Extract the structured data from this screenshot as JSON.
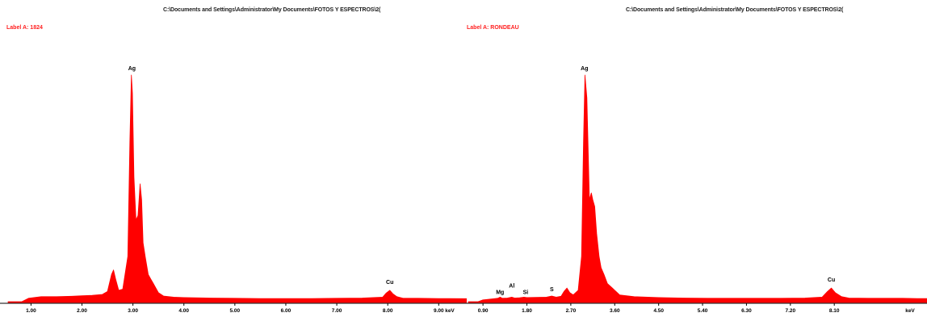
{
  "chart_data": [
    {
      "type": "area",
      "title": "C:\\Documents and Settings\\Administrator\\My Documents\\FOTOS Y ESPECTROS\\2(",
      "label": "Label A: 1824",
      "xlabel": "keV",
      "ylabel": "",
      "xlim": [
        0.55,
        9.55
      ],
      "ylim": [
        0,
        100
      ],
      "x_ticks": [
        "1.00",
        "2.00",
        "3.00",
        "4.00",
        "5.00",
        "6.00",
        "7.00",
        "8.00",
        "9.00"
      ],
      "x_tick_values": [
        1.0,
        2.0,
        3.0,
        4.0,
        5.0,
        6.0,
        7.0,
        8.0,
        9.0
      ],
      "color": "#ff0000",
      "peaks": [
        {
          "element": "Ag",
          "energy": 2.98,
          "intensity": 100
        },
        {
          "element": "Cu",
          "energy": 8.04,
          "intensity": 5
        }
      ],
      "series": [
        {
          "x": [
            0.55,
            0.82,
            0.95,
            1.2,
            1.5,
            1.8,
            2.0,
            2.2,
            2.4,
            2.5,
            2.58,
            2.62,
            2.66,
            2.72,
            2.8,
            2.9,
            2.94,
            2.97,
            2.99,
            3.02,
            3.06,
            3.1,
            3.14,
            3.17,
            3.2,
            3.24,
            3.3,
            3.35,
            3.4,
            3.5,
            3.6,
            3.8,
            4.0,
            4.5,
            5.0,
            5.5,
            6.0,
            6.5,
            7.0,
            7.5,
            7.9,
            7.97,
            8.04,
            8.1,
            8.18,
            8.3,
            8.6,
            9.0,
            9.2,
            9.55
          ],
          "y": [
            0,
            0,
            1.5,
            2.2,
            2.2,
            2.4,
            2.6,
            2.8,
            3.2,
            4.5,
            12,
            14,
            10,
            5,
            5.5,
            20,
            70,
            100,
            92,
            55,
            36,
            38,
            52,
            45,
            26,
            20,
            12,
            10,
            8,
            4,
            2.5,
            2,
            1.8,
            1.6,
            1.5,
            1.4,
            1.4,
            1.4,
            1.5,
            1.6,
            2,
            3.8,
            5,
            3.5,
            2.2,
            1.5,
            1.5,
            1.4,
            1.4,
            1.3
          ]
        }
      ]
    },
    {
      "type": "area",
      "title": "C:\\Documents and Settings\\Administrator\\My Documents\\FOTOS Y ESPECTROS\\2(",
      "label": "Label A: RONDEAU",
      "xlabel": "keV",
      "ylabel": "",
      "xlim": [
        0.6,
        10.0
      ],
      "ylim": [
        0,
        100
      ],
      "x_ticks": [
        "0.90",
        "1.80",
        "2.70",
        "3.60",
        "4.50",
        "5.40",
        "6.30",
        "7.20",
        "8.10"
      ],
      "x_tick_values": [
        0.9,
        1.8,
        2.7,
        3.6,
        4.5,
        5.4,
        6.3,
        7.2,
        8.1
      ],
      "color": "#ff0000",
      "peaks": [
        {
          "element": "Mg",
          "energy": 1.25,
          "intensity": 2
        },
        {
          "element": "Al",
          "energy": 1.49,
          "intensity": 2
        },
        {
          "element": "Si",
          "energy": 1.74,
          "intensity": 2
        },
        {
          "element": "S",
          "energy": 2.31,
          "intensity": 2.5
        },
        {
          "element": "Ag",
          "energy": 2.98,
          "intensity": 100
        },
        {
          "element": "Cu",
          "energy": 8.04,
          "intensity": 6
        }
      ],
      "series": [
        {
          "x": [
            0.6,
            0.8,
            0.9,
            1.0,
            1.2,
            1.25,
            1.3,
            1.4,
            1.49,
            1.55,
            1.65,
            1.74,
            1.8,
            2.0,
            2.2,
            2.31,
            2.4,
            2.5,
            2.56,
            2.62,
            2.68,
            2.75,
            2.85,
            2.92,
            2.96,
            2.99,
            3.03,
            3.08,
            3.12,
            3.15,
            3.19,
            3.23,
            3.28,
            3.32,
            3.38,
            3.45,
            3.55,
            3.7,
            4.0,
            4.5,
            5.0,
            5.5,
            6.0,
            6.5,
            7.0,
            7.5,
            7.85,
            7.96,
            8.04,
            8.12,
            8.25,
            8.4,
            8.8,
            9.2,
            9.5,
            9.8,
            10.0
          ],
          "y": [
            0,
            0,
            0.8,
            1.0,
            1.5,
            2.0,
            1.5,
            1.6,
            2.0,
            1.6,
            1.7,
            2.0,
            1.8,
            1.9,
            2.0,
            2.5,
            2.0,
            2.4,
            4.5,
            6,
            4,
            3,
            5,
            20,
            70,
            100,
            90,
            45,
            48,
            45,
            42,
            30,
            20,
            15,
            12,
            8,
            6,
            3,
            2.2,
            1.8,
            1.6,
            1.5,
            1.5,
            1.5,
            1.5,
            1.6,
            2,
            4.5,
            6,
            4,
            2.2,
            1.6,
            1.5,
            1.5,
            1.5,
            1.4,
            1.4
          ]
        }
      ]
    }
  ]
}
